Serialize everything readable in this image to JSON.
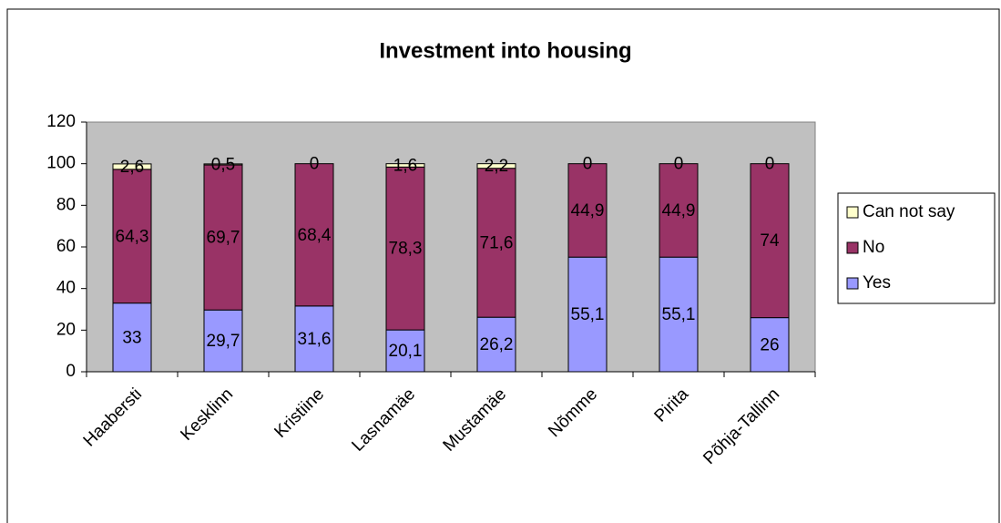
{
  "chart_data": {
    "type": "stacked_bar",
    "title": "Investment into housing",
    "categories": [
      "Haabersti",
      "Kesklinn",
      "Kristiine",
      "Lasnamäe",
      "Mustamäe",
      "Nõmme",
      "Pirita",
      "Põhja-Tallinn"
    ],
    "series": [
      {
        "name": "Yes",
        "color": "#9999ff",
        "values": [
          33,
          29.7,
          31.6,
          20.1,
          26.2,
          55.1,
          55.1,
          26
        ],
        "value_labels": [
          "33",
          "29,7",
          "31,6",
          "20,1",
          "26,2",
          "55,1",
          "55,1",
          "26"
        ]
      },
      {
        "name": "No",
        "color": "#993366",
        "values": [
          64.3,
          69.7,
          68.4,
          78.3,
          71.6,
          44.9,
          44.9,
          74
        ],
        "value_labels": [
          "64,3",
          "69,7",
          "68,4",
          "78,3",
          "71,6",
          "44,9",
          "44,9",
          "74"
        ]
      },
      {
        "name": "Can not say",
        "color": "#ffffcc",
        "values": [
          2.6,
          0.5,
          0,
          1.6,
          2.2,
          0,
          0,
          0
        ],
        "value_labels": [
          "2,6",
          "0,5",
          "0",
          "1,6",
          "2,2",
          "0",
          "0",
          "0"
        ]
      }
    ],
    "ylim": [
      0,
      120
    ],
    "yticks": [
      0,
      20,
      40,
      60,
      80,
      100,
      120
    ],
    "plot_background": "#c0c0c0",
    "legend": "right"
  }
}
